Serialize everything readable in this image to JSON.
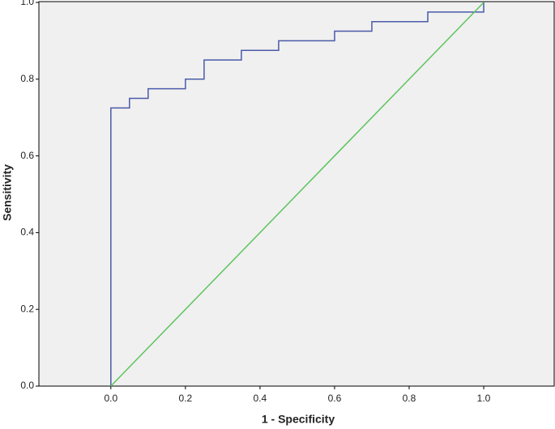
{
  "chart_data": {
    "type": "line",
    "xlabel": "1 - Specificity",
    "ylabel": "Sensitivity",
    "xlim": [
      -0.193,
      1.189
    ],
    "ylim": [
      0,
      1
    ],
    "xticks": [
      {
        "value": 0,
        "label": "0.0"
      },
      0.2,
      0.4,
      0.6,
      0.8,
      {
        "value": 1,
        "label": "1.0"
      }
    ],
    "yticks": [
      {
        "value": 0,
        "label": "0.0"
      },
      0.2,
      0.4,
      0.6,
      0.8,
      {
        "value": 1,
        "label": "1.0"
      }
    ],
    "background": "#f0f0f0",
    "series": [
      {
        "color": "#4a5aa8",
        "x": [
          0,
          0,
          0.05,
          0.05,
          0.1,
          0.1,
          0.2,
          0.2,
          0.25,
          0.25,
          0.35,
          0.35,
          0.45,
          0.45,
          0.6,
          0.6,
          0.7,
          0.7,
          0.85,
          0.85,
          1,
          1
        ],
        "values": [
          0,
          0.725,
          0.725,
          0.75,
          0.75,
          0.775,
          0.775,
          0.8,
          0.8,
          0.85,
          0.85,
          0.875,
          0.875,
          0.9,
          0.9,
          0.925,
          0.925,
          0.95,
          0.95,
          0.975,
          0.975,
          1
        ]
      },
      {
        "color": "#5cc45c",
        "x": [
          0,
          1
        ],
        "values": [
          0,
          1
        ]
      }
    ]
  }
}
